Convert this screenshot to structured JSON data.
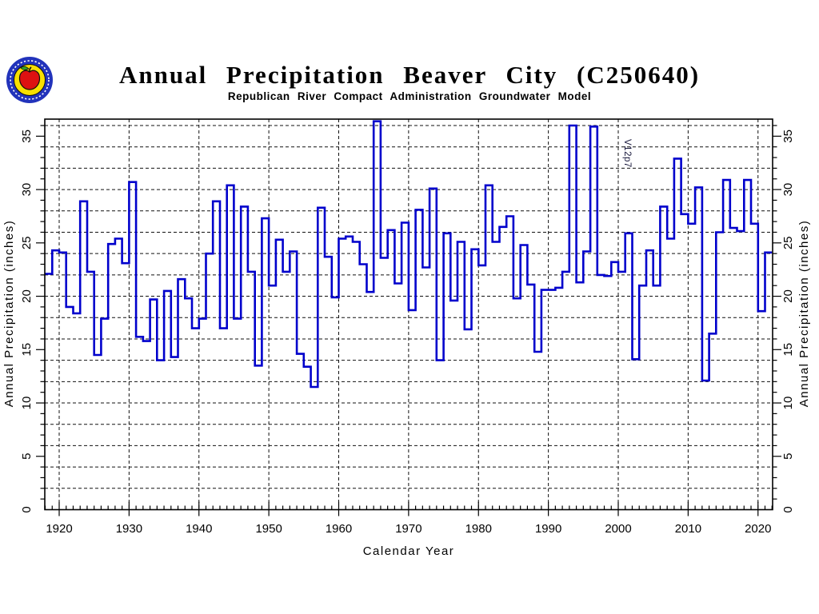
{
  "header": {
    "title": "Annual Precipitation Beaver City (C250640)",
    "subtitle": "Republican River Compact Administration Groundwater Model"
  },
  "logo": {
    "description": "circular seal with red apple on yellow disc inside blue ring",
    "ring_color": "#2233bb",
    "disc_color": "#f8e000",
    "apple_color": "#dd1111",
    "leaf_color": "#33aa22"
  },
  "annotation": {
    "text": "V12p7"
  },
  "chart_data": {
    "type": "line",
    "step": true,
    "title": "Annual Precipitation Beaver City (C250640)",
    "subtitle": "Republican River Compact Administration Groundwater Model",
    "xlabel": "Calendar Year",
    "ylabel": "Annual Precipitation (inches)",
    "line_color": "#0000cc",
    "grid": true,
    "xlim": [
      1918,
      2022
    ],
    "ylim": [
      0,
      36.6
    ],
    "x_major_ticks": [
      1920,
      1930,
      1940,
      1950,
      1960,
      1970,
      1980,
      1990,
      2000,
      2010,
      2020
    ],
    "y_major_ticks": [
      0,
      5,
      10,
      15,
      20,
      25,
      30,
      35
    ],
    "x_minor_step_years": 1,
    "y_minor_step": 1,
    "y_grid_step": 2,
    "start_year": 1918,
    "end_year": 2021,
    "values": [
      22.1,
      24.3,
      24.1,
      19.0,
      18.4,
      28.9,
      22.3,
      14.5,
      17.9,
      24.9,
      25.4,
      23.1,
      30.7,
      16.2,
      15.8,
      19.7,
      14.0,
      20.5,
      14.3,
      21.6,
      19.8,
      17.0,
      17.9,
      24.0,
      28.9,
      17.0,
      30.4,
      17.9,
      28.4,
      22.3,
      13.5,
      27.3,
      21.0,
      25.3,
      22.3,
      24.2,
      14.6,
      13.4,
      11.5,
      28.3,
      23.7,
      19.9,
      25.4,
      25.6,
      25.1,
      23.0,
      20.4,
      36.4,
      23.6,
      26.2,
      21.2,
      26.9,
      18.7,
      28.1,
      22.7,
      30.1,
      14.0,
      25.9,
      19.6,
      25.1,
      16.9,
      24.4,
      22.9,
      30.4,
      25.1,
      26.5,
      27.5,
      19.8,
      24.8,
      21.1,
      14.8,
      20.6,
      20.6,
      20.8,
      22.3,
      36.0,
      21.3,
      24.2,
      35.9,
      22.0,
      21.9,
      23.2,
      22.3,
      25.9,
      14.1,
      21.0,
      24.3,
      21.0,
      28.4,
      25.4,
      32.9,
      27.7,
      26.8,
      30.2,
      12.1,
      16.5,
      26.0,
      30.9,
      26.4,
      26.1,
      30.9,
      26.8,
      18.6,
      24.1
    ]
  }
}
